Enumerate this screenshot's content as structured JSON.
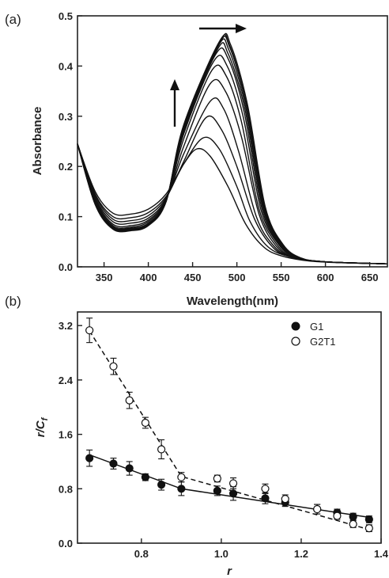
{
  "chart_data": [
    {
      "type": "line",
      "panel_label": "(a)",
      "xlabel": "Wavelength(nm)",
      "ylabel": "Absorbance",
      "xlim": [
        320,
        670
      ],
      "ylim": [
        0,
        0.5
      ],
      "xticks": [
        350,
        400,
        450,
        500,
        550,
        600,
        650
      ],
      "yticks": [
        0.0,
        0.1,
        0.2,
        0.3,
        0.4,
        0.5
      ],
      "ytick_labels": [
        "0.0",
        "0.1",
        "0.2",
        "0.3",
        "0.4",
        "0.5"
      ],
      "grid": false,
      "arrows": [
        "peak red-shift (rightward)",
        "absorbance increase (upward)"
      ],
      "series": [
        {
          "points": [
            [
              320,
              0.245
            ],
            [
              340,
              0.15
            ],
            [
              360,
              0.107
            ],
            [
              380,
              0.105
            ],
            [
              400,
              0.115
            ],
            [
              420,
              0.145
            ],
            [
              440,
              0.205
            ],
            [
              455,
              0.235
            ],
            [
              470,
              0.22
            ],
            [
              490,
              0.16
            ],
            [
              510,
              0.085
            ],
            [
              530,
              0.04
            ],
            [
              550,
              0.022
            ],
            [
              580,
              0.012
            ],
            [
              620,
              0.008
            ],
            [
              670,
              0.006
            ]
          ]
        },
        {
          "points": [
            [
              320,
              0.245
            ],
            [
              340,
              0.145
            ],
            [
              360,
              0.1
            ],
            [
              380,
              0.098
            ],
            [
              400,
              0.108
            ],
            [
              420,
              0.14
            ],
            [
              440,
              0.205
            ],
            [
              462,
              0.257
            ],
            [
              480,
              0.235
            ],
            [
              500,
              0.16
            ],
            [
              515,
              0.09
            ],
            [
              535,
              0.04
            ],
            [
              560,
              0.02
            ],
            [
              600,
              0.01
            ],
            [
              670,
              0.006
            ]
          ]
        },
        {
          "points": [
            [
              320,
              0.245
            ],
            [
              340,
              0.142
            ],
            [
              360,
              0.095
            ],
            [
              380,
              0.092
            ],
            [
              400,
              0.102
            ],
            [
              420,
              0.137
            ],
            [
              440,
              0.21
            ],
            [
              465,
              0.297
            ],
            [
              482,
              0.275
            ],
            [
              500,
              0.2
            ],
            [
              520,
              0.095
            ],
            [
              540,
              0.04
            ],
            [
              560,
              0.02
            ],
            [
              600,
              0.01
            ],
            [
              670,
              0.006
            ]
          ]
        },
        {
          "points": [
            [
              320,
              0.245
            ],
            [
              340,
              0.138
            ],
            [
              360,
              0.09
            ],
            [
              380,
              0.087
            ],
            [
              400,
              0.097
            ],
            [
              420,
              0.135
            ],
            [
              440,
              0.225
            ],
            [
              470,
              0.33
            ],
            [
              485,
              0.315
            ],
            [
              502,
              0.23
            ],
            [
              522,
              0.1
            ],
            [
              540,
              0.045
            ],
            [
              560,
              0.02
            ],
            [
              600,
              0.01
            ],
            [
              670,
              0.006
            ]
          ]
        },
        {
          "points": [
            [
              320,
              0.245
            ],
            [
              340,
              0.135
            ],
            [
              360,
              0.085
            ],
            [
              380,
              0.082
            ],
            [
              400,
              0.093
            ],
            [
              420,
              0.134
            ],
            [
              440,
              0.24
            ],
            [
              470,
              0.365
            ],
            [
              487,
              0.35
            ],
            [
              505,
              0.26
            ],
            [
              525,
              0.105
            ],
            [
              545,
              0.04
            ],
            [
              565,
              0.018
            ],
            [
              600,
              0.01
            ],
            [
              670,
              0.006
            ]
          ]
        },
        {
          "points": [
            [
              320,
              0.245
            ],
            [
              340,
              0.132
            ],
            [
              360,
              0.082
            ],
            [
              380,
              0.079
            ],
            [
              400,
              0.09
            ],
            [
              420,
              0.133
            ],
            [
              440,
              0.255
            ],
            [
              472,
              0.392
            ],
            [
              488,
              0.38
            ],
            [
              505,
              0.29
            ],
            [
              525,
              0.115
            ],
            [
              545,
              0.045
            ],
            [
              565,
              0.018
            ],
            [
              600,
              0.01
            ],
            [
              670,
              0.006
            ]
          ]
        },
        {
          "points": [
            [
              320,
              0.245
            ],
            [
              340,
              0.13
            ],
            [
              360,
              0.08
            ],
            [
              380,
              0.077
            ],
            [
              400,
              0.087
            ],
            [
              420,
              0.132
            ],
            [
              440,
              0.265
            ],
            [
              474,
              0.41
            ],
            [
              489,
              0.4
            ],
            [
              507,
              0.3
            ],
            [
              527,
              0.115
            ],
            [
              547,
              0.045
            ],
            [
              567,
              0.018
            ],
            [
              600,
              0.01
            ],
            [
              670,
              0.006
            ]
          ]
        },
        {
          "points": [
            [
              320,
              0.245
            ],
            [
              340,
              0.128
            ],
            [
              360,
              0.079
            ],
            [
              380,
              0.076
            ],
            [
              400,
              0.086
            ],
            [
              420,
              0.131
            ],
            [
              440,
              0.27
            ],
            [
              476,
              0.423
            ],
            [
              490,
              0.415
            ],
            [
              508,
              0.31
            ],
            [
              528,
              0.118
            ],
            [
              548,
              0.045
            ],
            [
              568,
              0.018
            ],
            [
              600,
              0.01
            ],
            [
              670,
              0.006
            ]
          ]
        },
        {
          "points": [
            [
              320,
              0.245
            ],
            [
              340,
              0.127
            ],
            [
              360,
              0.078
            ],
            [
              380,
              0.075
            ],
            [
              400,
              0.085
            ],
            [
              420,
              0.13
            ],
            [
              440,
              0.275
            ],
            [
              478,
              0.433
            ],
            [
              490,
              0.425
            ],
            [
              509,
              0.315
            ],
            [
              529,
              0.12
            ],
            [
              549,
              0.045
            ],
            [
              569,
              0.018
            ],
            [
              600,
              0.01
            ],
            [
              670,
              0.006
            ]
          ]
        },
        {
          "points": [
            [
              320,
              0.245
            ],
            [
              340,
              0.126
            ],
            [
              360,
              0.077
            ],
            [
              380,
              0.074
            ],
            [
              400,
              0.084
            ],
            [
              420,
              0.13
            ],
            [
              440,
              0.278
            ],
            [
              479,
              0.44
            ],
            [
              491,
              0.432
            ],
            [
              510,
              0.318
            ],
            [
              530,
              0.12
            ],
            [
              550,
              0.045
            ],
            [
              570,
              0.018
            ],
            [
              600,
              0.01
            ],
            [
              670,
              0.006
            ]
          ]
        },
        {
          "points": [
            [
              320,
              0.245
            ],
            [
              340,
              0.125
            ],
            [
              360,
              0.076
            ],
            [
              380,
              0.073
            ],
            [
              400,
              0.083
            ],
            [
              420,
              0.13
            ],
            [
              440,
              0.28
            ],
            [
              480,
              0.445
            ],
            [
              492,
              0.437
            ],
            [
              511,
              0.32
            ],
            [
              531,
              0.12
            ],
            [
              551,
              0.045
            ],
            [
              571,
              0.018
            ],
            [
              600,
              0.01
            ],
            [
              670,
              0.006
            ]
          ]
        },
        {
          "points": [
            [
              320,
              0.245
            ],
            [
              340,
              0.125
            ],
            [
              360,
              0.076
            ],
            [
              380,
              0.073
            ],
            [
              400,
              0.083
            ],
            [
              420,
              0.13
            ],
            [
              440,
              0.282
            ],
            [
              480,
              0.448
            ],
            [
              492,
              0.44
            ],
            [
              511,
              0.322
            ],
            [
              531,
              0.12
            ],
            [
              551,
              0.045
            ],
            [
              571,
              0.018
            ],
            [
              600,
              0.01
            ],
            [
              670,
              0.006
            ]
          ]
        },
        {
          "points": [
            [
              320,
              0.245
            ],
            [
              340,
              0.124
            ],
            [
              360,
              0.075
            ],
            [
              380,
              0.072
            ],
            [
              400,
              0.082
            ],
            [
              420,
              0.13
            ],
            [
              440,
              0.283
            ],
            [
              481,
              0.45
            ],
            [
              493,
              0.442
            ],
            [
              512,
              0.323
            ],
            [
              532,
              0.12
            ],
            [
              552,
              0.045
            ],
            [
              572,
              0.018
            ],
            [
              600,
              0.01
            ],
            [
              670,
              0.006
            ]
          ]
        }
      ]
    },
    {
      "type": "scatter",
      "panel_label": "(b)",
      "xlabel": "r",
      "ylabel": "r/C",
      "ylabel_sub": "f",
      "xlim": [
        0.64,
        1.4
      ],
      "ylim": [
        0,
        3.4
      ],
      "xticks": [
        0.8,
        1.0,
        1.2,
        1.4
      ],
      "xtick_labels": [
        "0.8",
        "1.0",
        "1.2",
        "1.4"
      ],
      "yticks": [
        0.0,
        0.8,
        1.6,
        2.4,
        3.2
      ],
      "ytick_labels": [
        "0.0",
        "0.8",
        "1.6",
        "2.4",
        "3.2"
      ],
      "grid": false,
      "legend_position": "top-right",
      "series": [
        {
          "name": "G1",
          "marker": "filled-circle",
          "fit_line": "solid",
          "fit": [
            [
              0.67,
              1.3
            ],
            [
              0.9,
              0.8
            ],
            [
              1.37,
              0.38
            ]
          ],
          "x": [
            0.67,
            0.73,
            0.77,
            0.81,
            0.85,
            0.9,
            0.99,
            1.03,
            1.11,
            1.16,
            1.24,
            1.29,
            1.33,
            1.37
          ],
          "y": [
            1.25,
            1.17,
            1.1,
            0.97,
            0.86,
            0.8,
            0.77,
            0.73,
            0.66,
            0.6,
            0.5,
            0.45,
            0.39,
            0.35
          ],
          "err": [
            0.12,
            0.08,
            0.1,
            0.05,
            0.08,
            0.1,
            0.07,
            0.1,
            0.08,
            0.06,
            0.07,
            0.05,
            0.05,
            0.05
          ]
        },
        {
          "name": "G2T1",
          "marker": "open-circle",
          "fit_line": "dashed",
          "fit": [
            [
              0.67,
              3.12
            ],
            [
              0.9,
              0.98
            ],
            [
              1.37,
              0.2
            ]
          ],
          "x": [
            0.67,
            0.73,
            0.77,
            0.81,
            0.85,
            0.9,
            0.99,
            1.03,
            1.11,
            1.16,
            1.24,
            1.29,
            1.33,
            1.37
          ],
          "y": [
            3.13,
            2.6,
            2.1,
            1.77,
            1.38,
            0.97,
            0.95,
            0.88,
            0.8,
            0.65,
            0.5,
            0.4,
            0.28,
            0.22
          ],
          "err": [
            0.18,
            0.12,
            0.12,
            0.08,
            0.14,
            0.07,
            0.05,
            0.08,
            0.07,
            0.06,
            0.07,
            0.05,
            0.05,
            0.05
          ]
        }
      ]
    }
  ]
}
